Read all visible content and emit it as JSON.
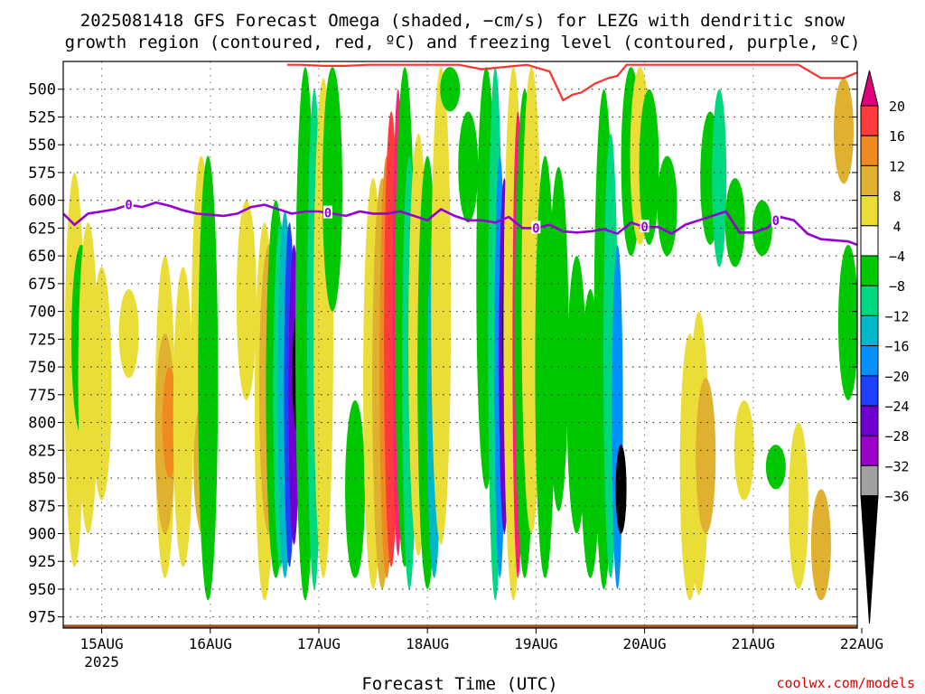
{
  "chart_data": {
    "type": "heatmap",
    "title_line1": "2025081418 GFS Forecast Omega (shaded, −cm/s) for LEZG with dendritic snow",
    "title_line2": "growth region (contoured, red, ºC) and freezing level (contoured, purple, ºC)",
    "xlabel": "Forecast Time (UTC)",
    "credit": "coolwx.com/models",
    "grid": true,
    "y_axis": {
      "label": "",
      "ticks": [
        500,
        525,
        550,
        575,
        600,
        625,
        650,
        675,
        700,
        725,
        750,
        775,
        800,
        825,
        850,
        875,
        900,
        925,
        950,
        975
      ],
      "range": [
        475,
        985
      ]
    },
    "x_axis": {
      "start_hours": -2.5,
      "end_hours": 173,
      "ticks": [
        {
          "hours": 6,
          "label": "15AUG",
          "sublabel": "2025"
        },
        {
          "hours": 30,
          "label": "16AUG",
          "sublabel": ""
        },
        {
          "hours": 54,
          "label": "17AUG",
          "sublabel": ""
        },
        {
          "hours": 78,
          "label": "18AUG",
          "sublabel": ""
        },
        {
          "hours": 102,
          "label": "19AUG",
          "sublabel": ""
        },
        {
          "hours": 126,
          "label": "20AUG",
          "sublabel": ""
        },
        {
          "hours": 150,
          "label": "21AUG",
          "sublabel": ""
        },
        {
          "hours": 174,
          "label": "22AUG",
          "sublabel": ""
        }
      ]
    },
    "colorbar": {
      "labels": [
        "20",
        "16",
        "12",
        "8",
        "4",
        "−4",
        "−8",
        "−12",
        "−16",
        "−20",
        "−24",
        "−28",
        "−32",
        "−36"
      ],
      "colors_top_arrow": "#e0007a",
      "colors": [
        "#ff3b3b",
        "#ee8a1f",
        "#e0b030",
        "#eadd38",
        "#ffffff",
        "#00c800",
        "#00d880",
        "#00b8c8",
        "#0090ff",
        "#2040ff",
        "#7000d0",
        "#9a00c8",
        "#a0a0a0"
      ],
      "colors_bottom_arrow": "#000000"
    },
    "shading": [
      {
        "hours": 0.0,
        "p_top": 575,
        "p_bot": 930,
        "value": 4
      },
      {
        "hours": 1.5,
        "p_top": 640,
        "p_bot": 810,
        "value": -8
      },
      {
        "hours": 3.0,
        "p_top": 620,
        "p_bot": 900,
        "value": 4
      },
      {
        "hours": 6.0,
        "p_top": 660,
        "p_bot": 870,
        "value": 4
      },
      {
        "hours": 12.0,
        "p_top": 680,
        "p_bot": 760,
        "value": 4
      },
      {
        "hours": 20.0,
        "p_top": 650,
        "p_bot": 940,
        "value": 4
      },
      {
        "hours": 20.0,
        "p_top": 720,
        "p_bot": 900,
        "value": 8
      },
      {
        "hours": 21.0,
        "p_top": 750,
        "p_bot": 850,
        "value": 12
      },
      {
        "hours": 24.0,
        "p_top": 660,
        "p_bot": 930,
        "value": 4
      },
      {
        "hours": 28.0,
        "p_top": 560,
        "p_bot": 900,
        "value": 4
      },
      {
        "hours": 28.5,
        "p_top": 780,
        "p_bot": 900,
        "value": 8
      },
      {
        "hours": 29.5,
        "p_top": 560,
        "p_bot": 960,
        "value": -8
      },
      {
        "hours": 38.0,
        "p_top": 600,
        "p_bot": 780,
        "value": 4
      },
      {
        "hours": 42.0,
        "p_top": 620,
        "p_bot": 960,
        "value": 4
      },
      {
        "hours": 43.0,
        "p_top": 640,
        "p_bot": 900,
        "value": 8
      },
      {
        "hours": 44.5,
        "p_top": 600,
        "p_bot": 940,
        "value": -8
      },
      {
        "hours": 45.5,
        "p_top": 620,
        "p_bot": 930,
        "value": -12
      },
      {
        "hours": 46.5,
        "p_top": 610,
        "p_bot": 940,
        "value": -16
      },
      {
        "hours": 47.5,
        "p_top": 620,
        "p_bot": 930,
        "value": -24
      },
      {
        "hours": 48.5,
        "p_top": 640,
        "p_bot": 910,
        "value": -28
      },
      {
        "hours": 49.3,
        "p_top": 700,
        "p_bot": 810,
        "value": -36
      },
      {
        "hours": 51.0,
        "p_top": 480,
        "p_bot": 960,
        "value": -8
      },
      {
        "hours": 53.0,
        "p_top": 500,
        "p_bot": 950,
        "value": -12
      },
      {
        "hours": 55.0,
        "p_top": 490,
        "p_bot": 940,
        "value": 4
      },
      {
        "hours": 57.0,
        "p_top": 480,
        "p_bot": 700,
        "value": -8
      },
      {
        "hours": 62.0,
        "p_top": 780,
        "p_bot": 940,
        "value": -8
      },
      {
        "hours": 66.0,
        "p_top": 580,
        "p_bot": 950,
        "value": 4
      },
      {
        "hours": 68.0,
        "p_top": 580,
        "p_bot": 950,
        "value": 8
      },
      {
        "hours": 69.0,
        "p_top": 560,
        "p_bot": 940,
        "value": 12
      },
      {
        "hours": 70.0,
        "p_top": 520,
        "p_bot": 930,
        "value": 16
      },
      {
        "hours": 71.5,
        "p_top": 500,
        "p_bot": 920,
        "value": 20
      },
      {
        "hours": 73.0,
        "p_top": 480,
        "p_bot": 930,
        "value": -8
      },
      {
        "hours": 74.0,
        "p_top": 560,
        "p_bot": 950,
        "value": -12
      },
      {
        "hours": 76.0,
        "p_top": 540,
        "p_bot": 920,
        "value": 4
      },
      {
        "hours": 78.0,
        "p_top": 560,
        "p_bot": 950,
        "value": -8
      },
      {
        "hours": 79.5,
        "p_top": 620,
        "p_bot": 940,
        "value": -16
      },
      {
        "hours": 81.0,
        "p_top": 480,
        "p_bot": 910,
        "value": 4
      },
      {
        "hours": 83.0,
        "p_top": 480,
        "p_bot": 520,
        "value": -8
      },
      {
        "hours": 87.0,
        "p_top": 520,
        "p_bot": 620,
        "value": -8
      },
      {
        "hours": 91.0,
        "p_top": 480,
        "p_bot": 860,
        "value": -8
      },
      {
        "hours": 93.0,
        "p_top": 480,
        "p_bot": 960,
        "value": -12
      },
      {
        "hours": 94.0,
        "p_top": 560,
        "p_bot": 940,
        "value": -20
      },
      {
        "hours": 95.0,
        "p_top": 580,
        "p_bot": 900,
        "value": -28
      },
      {
        "hours": 95.8,
        "p_top": 600,
        "p_bot": 830,
        "value": -36
      },
      {
        "hours": 97.0,
        "p_top": 480,
        "p_bot": 960,
        "value": 4
      },
      {
        "hours": 98.0,
        "p_top": 520,
        "p_bot": 940,
        "value": 20
      },
      {
        "hours": 99.5,
        "p_top": 500,
        "p_bot": 940,
        "value": -8
      },
      {
        "hours": 101.0,
        "p_top": 480,
        "p_bot": 900,
        "value": 4
      },
      {
        "hours": 104.0,
        "p_top": 560,
        "p_bot": 940,
        "value": -8
      },
      {
        "hours": 107.0,
        "p_top": 570,
        "p_bot": 880,
        "value": -8
      },
      {
        "hours": 111.0,
        "p_top": 650,
        "p_bot": 900,
        "value": -8
      },
      {
        "hours": 114.0,
        "p_top": 680,
        "p_bot": 940,
        "value": -8
      },
      {
        "hours": 117.0,
        "p_top": 500,
        "p_bot": 950,
        "value": -8
      },
      {
        "hours": 118.5,
        "p_top": 540,
        "p_bot": 940,
        "value": -12
      },
      {
        "hours": 120.0,
        "p_top": 640,
        "p_bot": 950,
        "value": -20
      },
      {
        "hours": 120.8,
        "p_top": 820,
        "p_bot": 900,
        "value": -36
      },
      {
        "hours": 123.0,
        "p_top": 480,
        "p_bot": 650,
        "value": -8
      },
      {
        "hours": 125.0,
        "p_top": 480,
        "p_bot": 640,
        "value": 4
      },
      {
        "hours": 127.0,
        "p_top": 500,
        "p_bot": 640,
        "value": -8
      },
      {
        "hours": 131.0,
        "p_top": 560,
        "p_bot": 650,
        "value": -8
      },
      {
        "hours": 136.0,
        "p_top": 720,
        "p_bot": 960,
        "value": 4
      },
      {
        "hours": 138.0,
        "p_top": 700,
        "p_bot": 955,
        "value": 4
      },
      {
        "hours": 139.5,
        "p_top": 760,
        "p_bot": 900,
        "value": 8
      },
      {
        "hours": 140.5,
        "p_top": 520,
        "p_bot": 640,
        "value": -8
      },
      {
        "hours": 142.5,
        "p_top": 500,
        "p_bot": 660,
        "value": -12
      },
      {
        "hours": 146.0,
        "p_top": 580,
        "p_bot": 660,
        "value": -8
      },
      {
        "hours": 148.0,
        "p_top": 780,
        "p_bot": 870,
        "value": 4
      },
      {
        "hours": 152.0,
        "p_top": 600,
        "p_bot": 650,
        "value": -8
      },
      {
        "hours": 155.0,
        "p_top": 820,
        "p_bot": 860,
        "value": -8
      },
      {
        "hours": 160.0,
        "p_top": 800,
        "p_bot": 950,
        "value": 4
      },
      {
        "hours": 165.0,
        "p_top": 860,
        "p_bot": 960,
        "value": 8
      },
      {
        "hours": 170.0,
        "p_top": 490,
        "p_bot": 585,
        "value": 8
      },
      {
        "hours": 171.0,
        "p_top": 640,
        "p_bot": 780,
        "value": -8
      }
    ],
    "freezing_level_line": {
      "contour_label": "0",
      "color": "#9400d3",
      "hours": [
        -2.5,
        0,
        3,
        6,
        9,
        12,
        15,
        18,
        21,
        24,
        27,
        30,
        33,
        36,
        39,
        42,
        45,
        48,
        51,
        54,
        57,
        60,
        63,
        66,
        69,
        72,
        75,
        78,
        81,
        84,
        87,
        90,
        93,
        96,
        99,
        102,
        105,
        108,
        111,
        114,
        117,
        120,
        123,
        126,
        129,
        132,
        135,
        138,
        141,
        144,
        147,
        150,
        153,
        156,
        159,
        162,
        165,
        168,
        171,
        173
      ],
      "pressure": [
        612,
        622,
        612,
        610,
        608,
        604,
        606,
        602,
        605,
        609,
        612,
        613,
        614,
        612,
        606,
        604,
        608,
        612,
        610,
        610,
        612,
        614,
        610,
        612,
        612,
        610,
        614,
        618,
        608,
        614,
        618,
        618,
        620,
        615,
        625,
        625,
        622,
        628,
        629,
        628,
        626,
        630,
        620,
        624,
        624,
        630,
        622,
        618,
        614,
        610,
        629,
        629,
        625,
        615,
        618,
        630,
        635,
        636,
        637,
        640
      ]
    },
    "dgz_line": {
      "color": "#ff3030",
      "hours": [
        47,
        50,
        55,
        60,
        65,
        70,
        75,
        80,
        85,
        90,
        95,
        100,
        105,
        108,
        110,
        112,
        115,
        118,
        120,
        122,
        150,
        160,
        165,
        170,
        173
      ],
      "pressure": [
        478,
        478,
        479,
        479,
        478,
        478,
        478,
        478,
        478,
        482,
        480,
        478,
        484,
        510,
        505,
        503,
        495,
        490,
        488,
        478,
        478,
        478,
        490,
        490,
        485
      ]
    },
    "terrain": {
      "color": "#a0522d",
      "pressure_top": 982
    }
  }
}
